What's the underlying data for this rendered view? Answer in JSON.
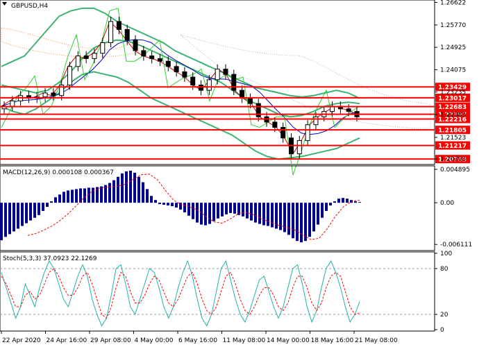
{
  "chart_data": [
    {
      "type": "line",
      "panel": "price",
      "title": "GBPUSD,H4",
      "ylim": [
        1.2055,
        1.2666
      ],
      "y_ticks": [
        "1.26622",
        "1.25770",
        "1.24925",
        "1.24075",
        "1.23235",
        "1.22383",
        "1.21523",
        "1.20703"
      ],
      "price_levels": [
        "1.23429",
        "1.23017",
        "1.22683",
        "1.22397",
        "1.22216",
        "1.21805",
        "1.21217",
        "1.20703"
      ],
      "candles_approx_close": [
        1.227,
        1.229,
        1.231,
        1.23,
        1.2305,
        1.232,
        1.231,
        1.235,
        1.242,
        1.246,
        1.245,
        1.247,
        1.251,
        1.259,
        1.256,
        1.252,
        1.248,
        1.246,
        1.245,
        1.244,
        1.242,
        1.24,
        1.238,
        1.235,
        1.233,
        1.237,
        1.241,
        1.239,
        1.233,
        1.23,
        1.228,
        1.223,
        1.221,
        1.219,
        1.215,
        1.209,
        1.214,
        1.22,
        1.223,
        1.225,
        1.227,
        1.226,
        1.225,
        1.223
      ],
      "series": [
        {
          "name": "",
          "values": [
            1.235,
            1.234,
            1.233,
            1.232,
            1.233,
            1.236,
            1.24,
            1.245,
            1.249,
            1.251,
            1.252,
            1.2515,
            1.25,
            1.248,
            1.246,
            1.244,
            1.242,
            1.24,
            1.238,
            1.236,
            1.233,
            1.23,
            1.228,
            1.226,
            1.224,
            1.223,
            1.2235,
            1.225,
            1.227,
            1.228,
            1.2285,
            1.228
          ]
        },
        {
          "name": "",
          "values": [
            1.242,
            1.244,
            1.246,
            1.251,
            1.256,
            1.261,
            1.263,
            1.264,
            1.264,
            1.262,
            1.259,
            1.257,
            1.255,
            1.253,
            1.251,
            1.248,
            1.246,
            1.244,
            1.242,
            1.24,
            1.238,
            1.236,
            1.234,
            1.233,
            1.232,
            1.231,
            1.2305,
            1.231,
            1.232,
            1.233,
            1.232,
            1.23
          ]
        },
        {
          "name": "",
          "values": [
            1.227,
            1.225,
            1.224,
            1.226,
            1.229,
            1.232,
            1.236,
            1.239,
            1.24,
            1.239,
            1.238,
            1.236,
            1.233,
            1.23,
            1.228,
            1.226,
            1.224,
            1.222,
            1.22,
            1.218,
            1.216,
            1.213,
            1.21,
            1.208,
            1.207,
            1.2075,
            1.208,
            1.209,
            1.21,
            1.211,
            1.213,
            1.215
          ]
        }
      ]
    },
    {
      "type": "bar",
      "panel": "macd",
      "title": "MACD(12,26,9) 0.000108 0.000367",
      "ylim": [
        -0.0068,
        0.0052
      ],
      "y_ticks": [
        "0.004895",
        "0.00",
        "-0.006111"
      ],
      "values": [
        -0.0055,
        -0.005,
        -0.0046,
        -0.0042,
        -0.0038,
        -0.0034,
        -0.003,
        -0.0026,
        -0.0022,
        -0.0018,
        -0.0012,
        -0.0006,
        0.0002,
        0.0008,
        0.0012,
        0.0016,
        0.0018,
        0.0019,
        0.002,
        0.0021,
        0.0021,
        0.0022,
        0.0022,
        0.0023,
        0.0024,
        0.0026,
        0.0029,
        0.0033,
        0.0038,
        0.0043,
        0.0046,
        0.0047,
        0.0044,
        0.0038,
        0.003,
        0.002,
        0.001,
        0.0004,
        -0.0002,
        -0.0003,
        -0.0004,
        -0.0005,
        -0.0007,
        -0.001,
        -0.0014,
        -0.0019,
        -0.0024,
        -0.0029,
        -0.0032,
        -0.0033,
        -0.0031,
        -0.0027,
        -0.0023,
        -0.002,
        -0.0017,
        -0.0015,
        -0.0016,
        -0.0018,
        -0.002,
        -0.0023,
        -0.0026,
        -0.0029,
        -0.0031,
        -0.0033,
        -0.0034,
        -0.0036,
        -0.0038,
        -0.004,
        -0.0043,
        -0.0047,
        -0.0052,
        -0.0056,
        -0.0058,
        -0.0056,
        -0.005,
        -0.0042,
        -0.0032,
        -0.0022,
        -0.0012,
        -0.0004,
        0.0002,
        0.0006,
        0.0007,
        0.0006,
        0.0004,
        0.0002,
        0.0001
      ],
      "signal": [
        -0.0048,
        -0.0045,
        -0.004,
        -0.0034,
        -0.0026,
        -0.0016,
        -0.0004,
        0.0008,
        0.0017,
        0.0022,
        0.0023,
        0.0024,
        0.0027,
        0.0034,
        0.0041,
        0.0042,
        0.0034,
        0.0018,
        0.0004,
        -0.0003,
        -0.0006,
        -0.0011,
        -0.002,
        -0.0028,
        -0.003,
        -0.0024,
        -0.0016,
        -0.0014,
        -0.0018,
        -0.0024,
        -0.0029,
        -0.0033,
        -0.0036,
        -0.004,
        -0.0047,
        -0.0054,
        -0.0052,
        -0.0038,
        -0.002,
        -0.0006,
        0.0002,
        0.0004
      ]
    },
    {
      "type": "line",
      "panel": "stochastic",
      "title": "Stoch(5,3,3) 37.0923 22.1269",
      "ylim": [
        0,
        100
      ],
      "y_ticks": [
        "100",
        "80",
        "20",
        "0"
      ],
      "levels": [
        80,
        20
      ],
      "series": [
        {
          "name": "",
          "values": [
            75,
            55,
            35,
            15,
            30,
            60,
            45,
            30,
            55,
            75,
            90,
            80,
            60,
            40,
            30,
            50,
            70,
            85,
            70,
            40,
            20,
            5,
            15,
            45,
            80,
            85,
            60,
            30,
            20,
            40,
            60,
            80,
            75,
            55,
            30,
            15,
            30,
            55,
            75,
            90,
            70,
            40,
            15,
            5,
            20,
            50,
            80,
            90,
            65,
            40,
            20,
            10,
            25,
            45,
            65,
            70,
            50,
            30,
            15,
            30,
            55,
            80,
            85,
            60,
            30,
            10,
            25,
            55,
            80,
            90,
            75,
            55,
            30,
            10,
            20,
            37
          ]
        },
        {
          "name": "",
          "values": [
            70,
            60,
            45,
            30,
            30,
            45,
            50,
            40,
            45,
            60,
            75,
            80,
            70,
            55,
            45,
            45,
            55,
            70,
            75,
            60,
            40,
            20,
            15,
            30,
            55,
            75,
            70,
            50,
            35,
            35,
            45,
            60,
            70,
            65,
            50,
            35,
            30,
            40,
            55,
            70,
            75,
            60,
            40,
            25,
            20,
            30,
            50,
            70,
            75,
            60,
            40,
            25,
            20,
            30,
            45,
            55,
            55,
            45,
            30,
            25,
            35,
            55,
            70,
            70,
            55,
            35,
            25,
            35,
            55,
            70,
            75,
            70,
            50,
            30,
            20,
            22
          ]
        }
      ]
    }
  ],
  "x_tick_labels": [
    "22 Apr 2020",
    "24 Apr 16:00",
    "29 Apr 08:00",
    "4 May 00:00",
    "6 May 16:00",
    "11 May 08:00",
    "14 May 00:00",
    "18 May 16:00",
    "21 May 08:00"
  ],
  "colors": {
    "candle": "#000000",
    "bollinger": "#3cb371",
    "ma_fast": "#cc0000",
    "ma_slow": "#0000cc",
    "momentum": "#32cd32",
    "cloud_a": "#ff8c40",
    "cloud_b": "#b8a8d8",
    "level_line": "#ff0000",
    "macd_bar": "#00008b",
    "signal": "#ff0000",
    "stoch_main": "#20b2aa",
    "stoch_signal": "#ff0000"
  }
}
